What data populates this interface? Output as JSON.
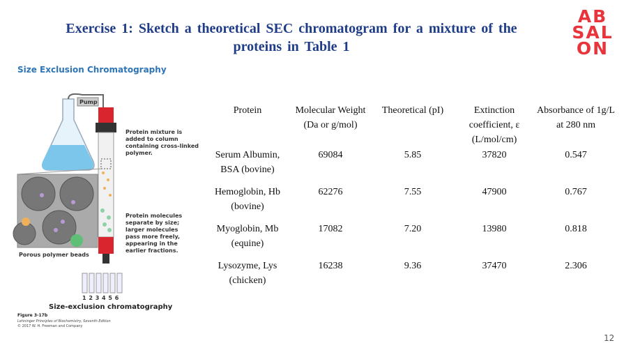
{
  "header": {
    "title": "Exercise 1: Sketch a theoretical SEC chromatogram for a mixture of the proteins in Table 1",
    "subtitle": "Size Exclusion Chromatography",
    "logo": [
      "AB",
      "SAL",
      "ON"
    ]
  },
  "figure": {
    "pump": "Pump",
    "label_mixture": "Protein mixture is added to column containing cross-linked polymer.",
    "label_separate": "Protein molecules separate by size; larger molecules pass more freely, appearing in the earlier fractions.",
    "label_beads": "Porous polymer beads",
    "fractions": "1 2 3 4 5 6",
    "caption": "Size-exclusion chromatography",
    "figure_number": "Figure 3-17b",
    "source": "Lehninger Principles of Biochemistry, Seventh Edition",
    "copyright": "© 2017 W. H. Freeman and Company"
  },
  "table": {
    "columns": [
      "Protein",
      "Molecular Weight (Da or g/mol)",
      "Theoretical (pI)",
      "Extinction coefficient, ε (L/mol/cm)",
      "Absorbance of 1g/L at 280 nm"
    ],
    "rows": [
      [
        "Serum Albumin, BSA (bovine)",
        "69084",
        "5.85",
        "37820",
        "0.547"
      ],
      [
        "Hemoglobin, Hb (bovine)",
        "62276",
        "7.55",
        "47900",
        "0.767"
      ],
      [
        "Myoglobin, Mb (equine)",
        "17082",
        "7.20",
        "13980",
        "0.818"
      ],
      [
        "Lysozyme, Lys (chicken)",
        "16238",
        "9.36",
        "37470",
        "2.306"
      ]
    ]
  },
  "page_number": "12"
}
